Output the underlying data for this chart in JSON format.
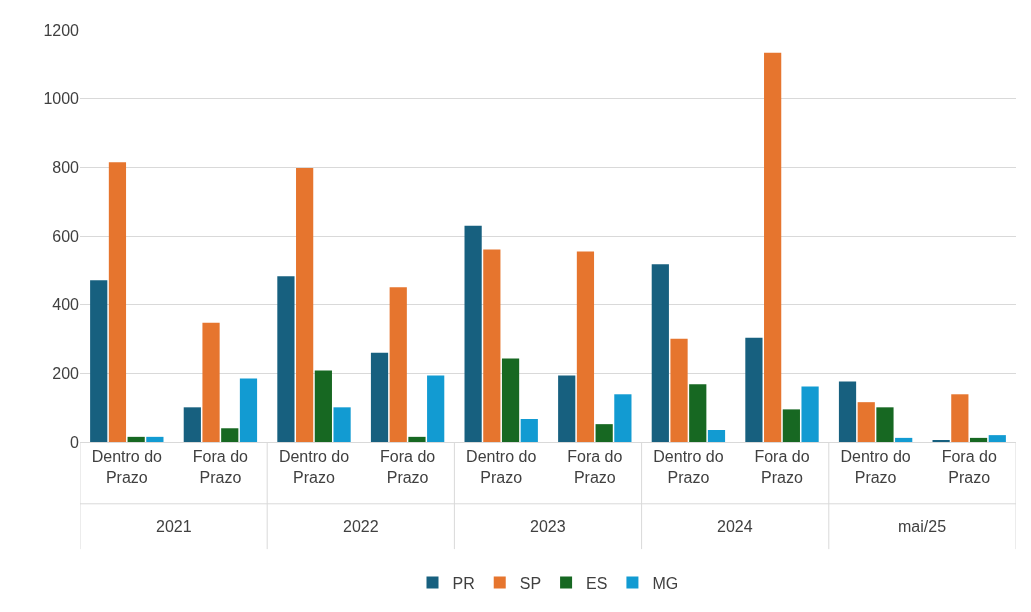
{
  "chart_data": {
    "type": "bar",
    "categories": [
      "Dentro do Prazo",
      "Fora do Prazo",
      "Dentro do Prazo",
      "Fora do Prazo",
      "Dentro do Prazo",
      "Fora do Prazo",
      "Dentro do Prazo",
      "Fora do Prazo",
      "Dentro do Prazo",
      "Fora do Prazo"
    ],
    "annotations": [
      "2021",
      "2022",
      "2023",
      "2024",
      "mai/25"
    ],
    "series": [
      {
        "name": "PR",
        "color": "#17607f",
        "values": [
          471,
          101,
          483,
          260,
          630,
          194,
          518,
          304,
          176,
          5
        ]
      },
      {
        "name": "SP",
        "color": "#e6752e",
        "values": [
          815,
          347,
          798,
          451,
          561,
          555,
          301,
          1134,
          116,
          139
        ]
      },
      {
        "name": "ES",
        "color": "#176822",
        "values": [
          15,
          40,
          208,
          15,
          243,
          52,
          168,
          95,
          101,
          12
        ]
      },
      {
        "name": "MG",
        "color": "#129bd2",
        "values": [
          15,
          185,
          101,
          194,
          67,
          139,
          35,
          162,
          12,
          20
        ]
      }
    ],
    "ylim": [
      0,
      1200
    ],
    "yticks": [
      0,
      200,
      400,
      600,
      800,
      1000,
      1200
    ],
    "grid": "y",
    "legend": "bottom"
  }
}
